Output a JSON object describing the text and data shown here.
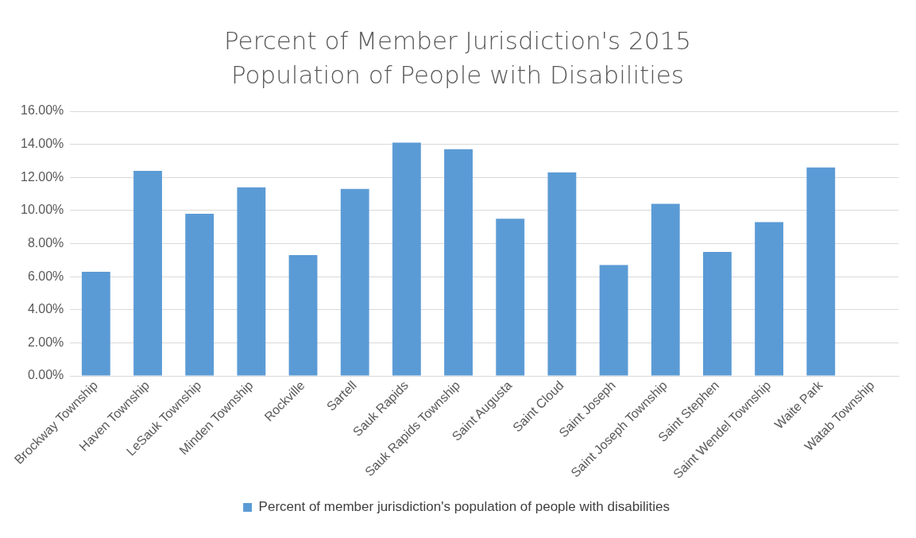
{
  "chart_data": {
    "type": "bar",
    "title": "Percent of Member Jurisdiction's 2015 Population of People with Disabilities",
    "categories": [
      "Brockway Township",
      "Haven Township",
      "LeSauk Township",
      "Minden Township",
      "Rockville",
      "Sartell",
      "Sauk Rapids",
      "Sauk Rapids Township",
      "Saint Augusta",
      "Saint Cloud",
      "Saint Joseph",
      "Saint Joseph Township",
      "Saint Stephen",
      "Saint Wendel Township",
      "Waite Park",
      "Watab Township"
    ],
    "series": [
      {
        "name": "Percent of member jurisdiction's population of people with disabilities",
        "color": "#5b9bd5",
        "values": [
          6.3,
          12.4,
          9.8,
          11.4,
          7.3,
          11.3,
          14.1,
          13.7,
          9.5,
          12.3,
          6.7,
          10.4,
          7.5,
          9.3,
          12.6,
          null
        ]
      }
    ],
    "ylim": [
      0,
      16
    ],
    "yticks": [
      {
        "value": 0,
        "label": "0.00%"
      },
      {
        "value": 2,
        "label": "2.00%"
      },
      {
        "value": 4,
        "label": "4.00%"
      },
      {
        "value": 6,
        "label": "6.00%"
      },
      {
        "value": 8,
        "label": "8.00%"
      },
      {
        "value": 10,
        "label": "10.00%"
      },
      {
        "value": 12,
        "label": "12.00%"
      },
      {
        "value": 14,
        "label": "14.00%"
      },
      {
        "value": 16,
        "label": "16.00%"
      }
    ],
    "grid": "y",
    "legend": "bottom"
  }
}
